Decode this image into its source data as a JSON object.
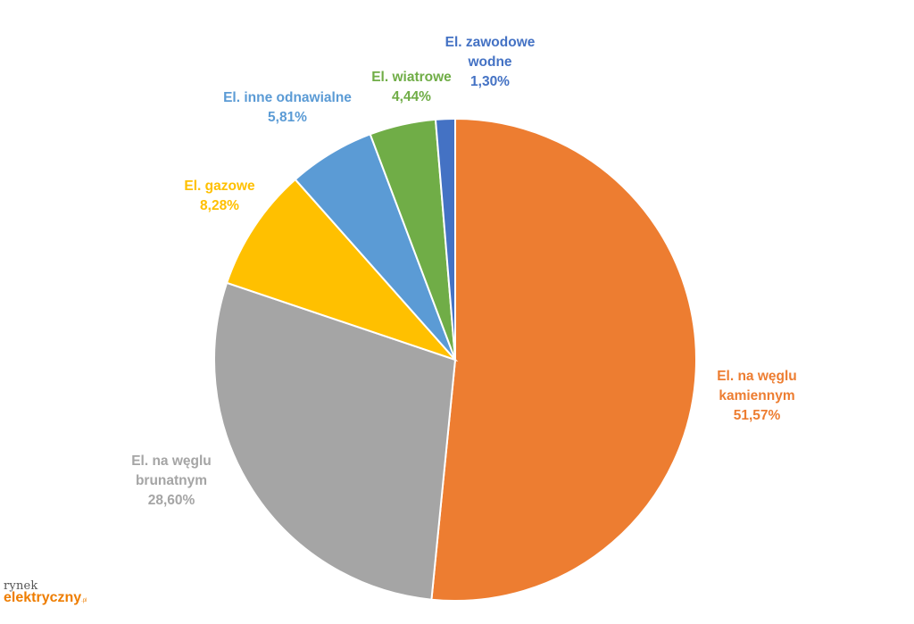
{
  "chart_data": {
    "type": "pie",
    "slices": [
      {
        "label": "El. na węglu kamiennym",
        "value": 51.57,
        "value_label": "51,57%",
        "color": "#ED7D31"
      },
      {
        "label": "El. na węglu brunatnym",
        "value": 28.6,
        "value_label": "28,60%",
        "color": "#A5A5A5"
      },
      {
        "label": "El. gazowe",
        "value": 8.28,
        "value_label": "8,28%",
        "color": "#FFC000"
      },
      {
        "label": "El. inne odnawialne",
        "value": 5.81,
        "value_label": "5,81%",
        "color": "#5B9BD5"
      },
      {
        "label": "El. wiatrowe",
        "value": 4.44,
        "value_label": "4,44%",
        "color": "#70AD47"
      },
      {
        "label": "El. zawodowe wodne",
        "value": 1.3,
        "value_label": "1,30%",
        "color": "#4472C4"
      }
    ],
    "start_angle": "12 o'clock",
    "direction": "clockwise",
    "legend": "none"
  },
  "logo": {
    "line1": "rynek",
    "line2": "elektryczny",
    "tld": ".pl",
    "line2_color": "#EE7D00"
  }
}
